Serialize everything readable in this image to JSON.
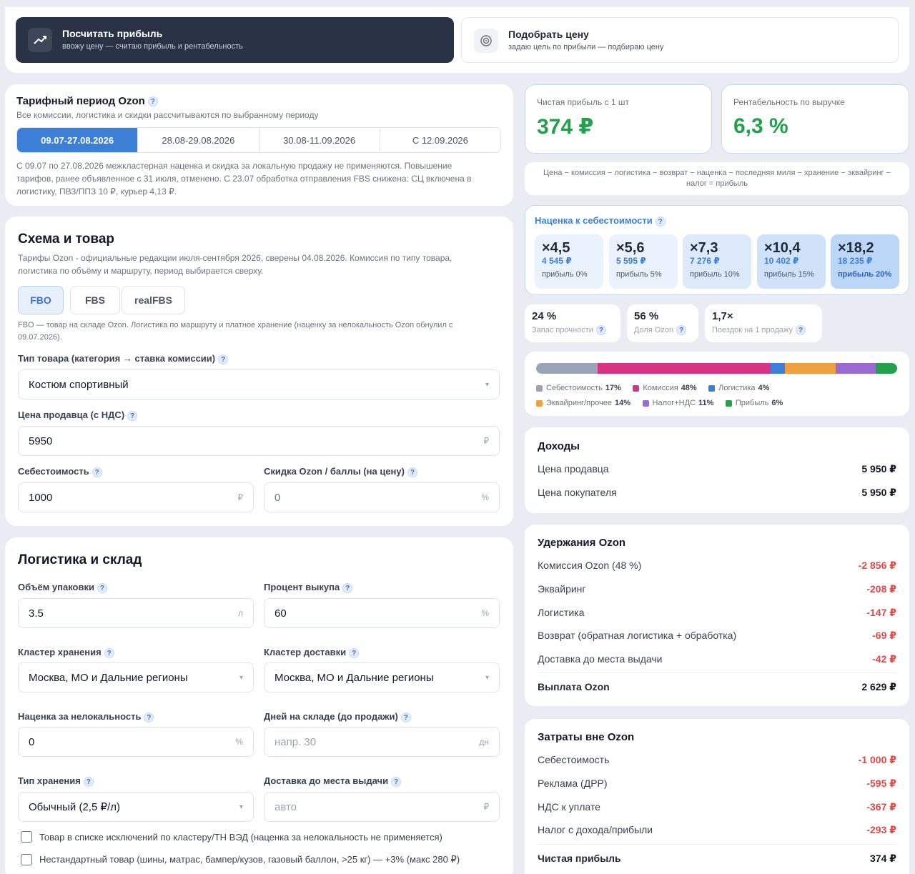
{
  "modes": {
    "calc": {
      "title": "Посчитать прибыль",
      "subtitle": "ввожу цену — считаю прибыль и рентабельность"
    },
    "pick": {
      "title": "Подобрать цену",
      "subtitle": "задаю цель по прибыли — подбираю цену"
    }
  },
  "tariff": {
    "title": "Тарифный период Ozon",
    "subtitle": "Все комиссии, логистика и скидки рассчитываются по выбранному периоду",
    "periods": [
      "09.07-27.08.2026",
      "28.08-29.08.2026",
      "30.08-11.09.2026",
      "С 12.09.2026"
    ],
    "note": "С 09.07 по 27.08.2026 межкластерная наценка и скидка за локальную продажу не применяются. Повышение тарифов, ранее объявленное с 31 июля, отменено. С 23.07 обработка отправления FBS снижена: СЦ включена в логистику, ПВЗ/ППЗ 10 ₽, курьер 4,13 ₽."
  },
  "scheme": {
    "title": "Схема и товар",
    "subtitle": "Тарифы Ozon - официальные редакции июля-сентября 2026, сверены 04.08.2026. Комиссия по типу товара, логистика по объёму и маршруту, период выбирается сверху.",
    "tabs": [
      "FBO",
      "FBS",
      "realFBS"
    ],
    "note": "FBO — товар на складе Ozon. Логистика по маршруту и платное хранение (наценку за нелокальность Ozon обнулил с 09.07.2026).",
    "category_label": "Тип товара (категория → ставка комиссии)",
    "category_value": "Костюм спортивный",
    "price_label": "Цена продавца (с НДС)",
    "price_value": "5950",
    "price_unit": "₽",
    "cost_label": "Себестоимость",
    "cost_value": "1000",
    "cost_unit": "₽",
    "discount_label": "Скидка Ozon / баллы (на цену)",
    "discount_value": "0",
    "discount_unit": "%"
  },
  "logistics": {
    "title": "Логистика и склад",
    "volume_label": "Объём упаковки",
    "volume_value": "3.5",
    "volume_unit": "л",
    "buyout_label": "Процент выкупа",
    "buyout_value": "60",
    "buyout_unit": "%",
    "storage_cluster_label": "Кластер хранения",
    "storage_cluster_value": "Москва, МО и Дальние регионы",
    "delivery_cluster_label": "Кластер доставки",
    "delivery_cluster_value": "Москва, МО и Дальние регионы",
    "nonlocal_label": "Наценка за нелокальность",
    "nonlocal_value": "0",
    "nonlocal_unit": "%",
    "days_label": "Дней на складе (до продажи)",
    "days_placeholder": "напр. 30",
    "days_unit": "дн",
    "storage_type_label": "Тип хранения",
    "storage_type_value": "Обычный (2,5 ₽/л)",
    "lastmile_label": "Доставка до места выдачи",
    "lastmile_placeholder": "авто",
    "lastmile_unit": "₽",
    "check1": "Товар в списке исключений по кластеру/ТН ВЭД (наценка за нелокальность не применяется)",
    "check2": "Нестандартный товар (шины, матрас, бампер/кузов, газовый баллон, >25 кг) — +3% (макс 280 ₽)"
  },
  "results": {
    "profit_label": "Чистая прибыль с 1 шт",
    "profit_value": "374 ₽",
    "margin_label": "Рентабельность по выручке",
    "margin_value": "6,3 %",
    "formula": "Цена − комиссия − логистика − возврат − наценка − последняя миля − хранение − эквайринг − налог = прибыль"
  },
  "markup": {
    "title": "Наценка к себестоимости",
    "items": [
      {
        "mult": "×4,5",
        "price": "4 545 ₽",
        "profit": "прибыль 0%"
      },
      {
        "mult": "×5,6",
        "price": "5 595 ₽",
        "profit": "прибыль 5%"
      },
      {
        "mult": "×7,3",
        "price": "7 276 ₽",
        "profit": "прибыль 10%"
      },
      {
        "mult": "×10,4",
        "price": "10 402 ₽",
        "profit": "прибыль 15%"
      },
      {
        "mult": "×18,2",
        "price": "18 235 ₽",
        "profit": "прибыль 20%"
      }
    ]
  },
  "metrics": [
    {
      "value": "24 %",
      "label": "Запас прочности"
    },
    {
      "value": "56 %",
      "label": "Доля Ozon"
    },
    {
      "value": "1,7×",
      "label": "Поездок на 1 продажу"
    }
  ],
  "breakdown": {
    "segments": [
      {
        "name": "Себестоимость",
        "pct": "17%",
        "share": 17,
        "color": "#9aa3b5"
      },
      {
        "name": "Комиссия",
        "pct": "48%",
        "share": 48,
        "color": "#d63384"
      },
      {
        "name": "Логистика",
        "pct": "4%",
        "share": 4,
        "color": "#3b7fd6"
      },
      {
        "name": "Эквайринг/прочее",
        "pct": "14%",
        "share": 14,
        "color": "#f0a040"
      },
      {
        "name": "Налог+НДС",
        "pct": "11%",
        "share": 11,
        "color": "#9b6ad3"
      },
      {
        "name": "Прибыль",
        "pct": "6%",
        "share": 6,
        "color": "#22a04b"
      }
    ]
  },
  "income": {
    "title": "Доходы",
    "rows": [
      {
        "label": "Цена продавца",
        "value": "5 950 ₽"
      },
      {
        "label": "Цена покупателя",
        "value": "5 950 ₽"
      }
    ]
  },
  "ozon": {
    "title": "Удержания Ozon",
    "rows": [
      {
        "label": "Комиссия Ozon (48 %)",
        "value": "-2 856 ₽"
      },
      {
        "label": "Эквайринг",
        "value": "-208 ₽"
      },
      {
        "label": "Логистика",
        "value": "-147 ₽"
      },
      {
        "label": "Возврат (обратная логистика + обработка)",
        "value": "-69 ₽"
      },
      {
        "label": "Доставка до места выдачи",
        "value": "-42 ₽"
      }
    ],
    "total_label": "Выплата Ozon",
    "total_value": "2 629 ₽"
  },
  "outside": {
    "title": "Затраты вне Ozon",
    "rows": [
      {
        "label": "Себестоимость",
        "value": "-1 000 ₽"
      },
      {
        "label": "Реклама (ДРР)",
        "value": "-595 ₽"
      },
      {
        "label": "НДС к уплате",
        "value": "-367 ₽"
      },
      {
        "label": "Налог с дохода/прибыли",
        "value": "-293 ₽"
      }
    ],
    "total_label": "Чистая прибыль",
    "total_value": "374 ₽"
  },
  "colors": {
    "accent": "#3b7fd6",
    "profit": "#22a04b",
    "negative": "#e14848",
    "dark": "#2a3346"
  }
}
